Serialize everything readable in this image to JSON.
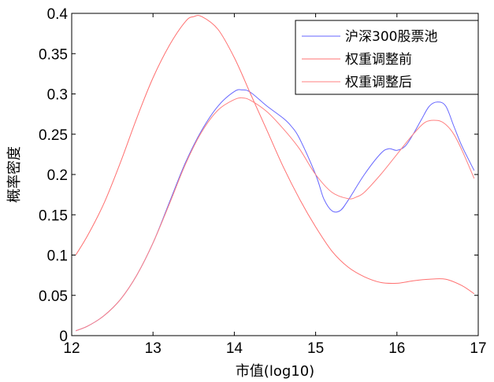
{
  "chart_data": {
    "type": "line",
    "xlabel": "市值(log10)",
    "ylabel": "概率密度",
    "xlim": [
      12,
      17
    ],
    "ylim": [
      0,
      0.4
    ],
    "xticks": [
      "12",
      "13",
      "14",
      "15",
      "16",
      "17"
    ],
    "yticks": [
      "0",
      "0.05",
      "0.1",
      "0.15",
      "0.2",
      "0.25",
      "0.3",
      "0.35",
      "0.4"
    ],
    "grid": false,
    "legend_position": "top-right",
    "series": [
      {
        "name": "沪深300股票池",
        "color": "#6666ff",
        "points": [
          [
            12.05,
            0.006
          ],
          [
            12.2,
            0.012
          ],
          [
            12.4,
            0.025
          ],
          [
            12.6,
            0.045
          ],
          [
            12.8,
            0.075
          ],
          [
            13.0,
            0.115
          ],
          [
            13.2,
            0.165
          ],
          [
            13.4,
            0.215
          ],
          [
            13.6,
            0.255
          ],
          [
            13.8,
            0.285
          ],
          [
            14.0,
            0.303
          ],
          [
            14.1,
            0.305
          ],
          [
            14.2,
            0.302
          ],
          [
            14.4,
            0.285
          ],
          [
            14.6,
            0.27
          ],
          [
            14.7,
            0.26
          ],
          [
            14.8,
            0.245
          ],
          [
            15.0,
            0.2
          ],
          [
            15.1,
            0.17
          ],
          [
            15.2,
            0.155
          ],
          [
            15.3,
            0.155
          ],
          [
            15.4,
            0.168
          ],
          [
            15.6,
            0.2
          ],
          [
            15.8,
            0.226
          ],
          [
            15.9,
            0.232
          ],
          [
            16.0,
            0.23
          ],
          [
            16.1,
            0.235
          ],
          [
            16.2,
            0.25
          ],
          [
            16.3,
            0.268
          ],
          [
            16.4,
            0.285
          ],
          [
            16.5,
            0.29
          ],
          [
            16.6,
            0.285
          ],
          [
            16.7,
            0.26
          ],
          [
            16.8,
            0.235
          ],
          [
            16.95,
            0.205
          ]
        ]
      },
      {
        "name": "权重调整前",
        "color": "#ff7070",
        "points": [
          [
            12.05,
            0.1
          ],
          [
            12.2,
            0.125
          ],
          [
            12.4,
            0.165
          ],
          [
            12.6,
            0.215
          ],
          [
            12.8,
            0.27
          ],
          [
            13.0,
            0.32
          ],
          [
            13.2,
            0.36
          ],
          [
            13.4,
            0.39
          ],
          [
            13.5,
            0.396
          ],
          [
            13.6,
            0.396
          ],
          [
            13.8,
            0.38
          ],
          [
            14.0,
            0.345
          ],
          [
            14.2,
            0.3
          ],
          [
            14.4,
            0.255
          ],
          [
            14.6,
            0.21
          ],
          [
            14.8,
            0.17
          ],
          [
            15.0,
            0.135
          ],
          [
            15.2,
            0.105
          ],
          [
            15.4,
            0.085
          ],
          [
            15.6,
            0.073
          ],
          [
            15.8,
            0.066
          ],
          [
            16.0,
            0.065
          ],
          [
            16.2,
            0.068
          ],
          [
            16.4,
            0.07
          ],
          [
            16.6,
            0.07
          ],
          [
            16.8,
            0.062
          ],
          [
            16.95,
            0.052
          ]
        ]
      },
      {
        "name": "权重调整后",
        "color": "#ff8080",
        "points": [
          [
            12.05,
            0.006
          ],
          [
            12.2,
            0.012
          ],
          [
            12.4,
            0.025
          ],
          [
            12.6,
            0.045
          ],
          [
            12.8,
            0.075
          ],
          [
            13.0,
            0.115
          ],
          [
            13.2,
            0.163
          ],
          [
            13.4,
            0.213
          ],
          [
            13.6,
            0.253
          ],
          [
            13.8,
            0.28
          ],
          [
            14.0,
            0.293
          ],
          [
            14.1,
            0.295
          ],
          [
            14.2,
            0.292
          ],
          [
            14.4,
            0.278
          ],
          [
            14.6,
            0.257
          ],
          [
            14.8,
            0.232
          ],
          [
            15.0,
            0.2
          ],
          [
            15.2,
            0.178
          ],
          [
            15.4,
            0.17
          ],
          [
            15.5,
            0.172
          ],
          [
            15.6,
            0.178
          ],
          [
            15.8,
            0.2
          ],
          [
            16.0,
            0.225
          ],
          [
            16.2,
            0.25
          ],
          [
            16.35,
            0.265
          ],
          [
            16.5,
            0.267
          ],
          [
            16.6,
            0.262
          ],
          [
            16.7,
            0.25
          ],
          [
            16.8,
            0.23
          ],
          [
            16.95,
            0.195
          ]
        ]
      }
    ]
  }
}
